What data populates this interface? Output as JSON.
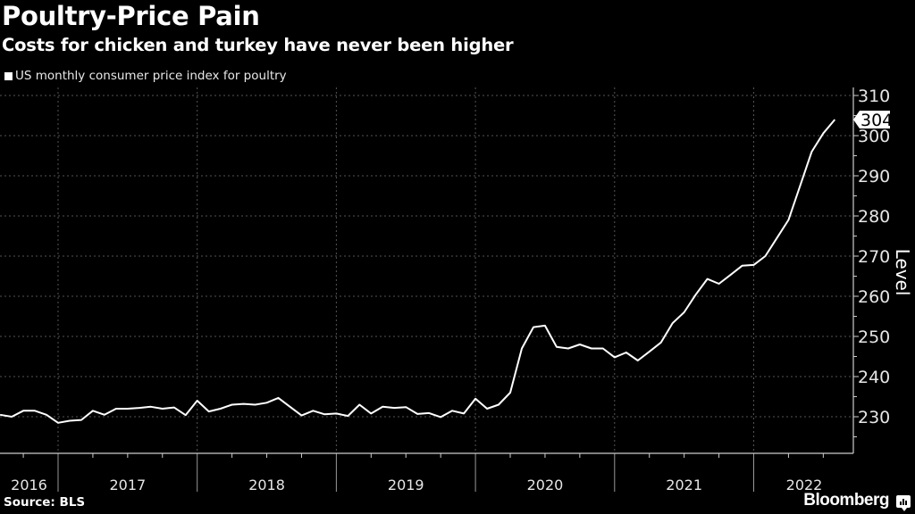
{
  "header": {
    "title": "Poultry-Price Pain",
    "subtitle": "Costs for chicken and turkey have never been higher",
    "legend_label": "US monthly consumer price index for poultry"
  },
  "footer": {
    "source": "Source: BLS",
    "brand": "Bloomberg"
  },
  "colors": {
    "background": "#000000",
    "line": "#ffffff",
    "grid": "#555555",
    "axis": "#cccccc"
  },
  "chart_data": {
    "type": "line",
    "title": "Poultry-Price Pain",
    "subtitle": "Costs for chicken and turkey have never been higher",
    "xlabel": "",
    "ylabel": "Level",
    "ylim": [
      221,
      311
    ],
    "yticks": [
      230,
      240,
      250,
      260,
      270,
      280,
      290,
      300,
      310
    ],
    "ytick_labels": [
      "230",
      "240",
      "250",
      "260",
      "270",
      "280",
      "290",
      "300",
      "310"
    ],
    "xtick_labels": [
      "2016",
      "2017",
      "2018",
      "2019",
      "2020",
      "2021",
      "2022"
    ],
    "grid": true,
    "legend_position": "top-left",
    "last_value_label": "304",
    "series": [
      {
        "name": "US monthly consumer price index for poultry",
        "start": "2016-08",
        "frequency": "monthly",
        "values": [
          230.5,
          230.0,
          231.5,
          231.5,
          230.5,
          228.5,
          229.0,
          229.2,
          231.5,
          230.5,
          232.0,
          232.0,
          232.2,
          232.5,
          232.0,
          232.3,
          230.4,
          234.0,
          231.3,
          232.0,
          233.0,
          233.2,
          233.0,
          233.5,
          234.7,
          232.5,
          230.3,
          231.5,
          230.6,
          230.8,
          230.2,
          233.0,
          230.8,
          232.5,
          232.2,
          232.4,
          230.7,
          230.9,
          229.9,
          231.5,
          230.8,
          234.5,
          232.0,
          233.0,
          236.0,
          247.0,
          252.3,
          252.7,
          247.4,
          247.0,
          248.0,
          247.0,
          247.0,
          244.8,
          246.0,
          244.0,
          246.2,
          248.5,
          253.3,
          256.0,
          260.4,
          264.3,
          263.1,
          265.3,
          267.6,
          267.8,
          270.0,
          274.5,
          279.0,
          287.5,
          296.0,
          300.6,
          304.0
        ]
      }
    ]
  }
}
